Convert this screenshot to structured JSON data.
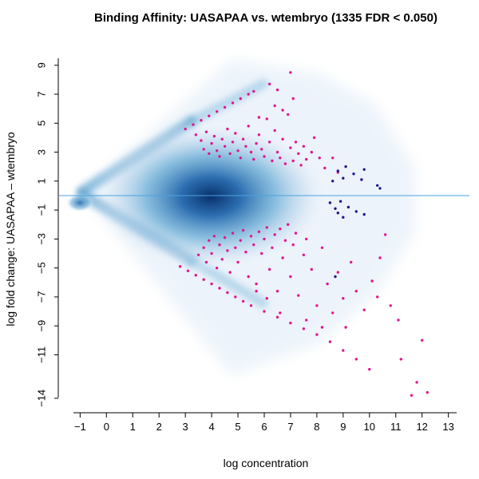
{
  "chart_data": {
    "type": "scatter",
    "title": "Binding Affinity: UASAPAA vs. wtembryo (1335 FDR < 0.050)",
    "xlabel": "log concentration",
    "ylabel": "log fold change: UASAPAA – wtembryo",
    "xlim": [
      -1.8,
      13.8
    ],
    "ylim": [
      -15.0,
      10.2
    ],
    "x_ticks": [
      -1,
      0,
      1,
      2,
      3,
      4,
      5,
      6,
      7,
      8,
      9,
      10,
      11,
      12,
      13
    ],
    "y_ticks": [
      9,
      7,
      5,
      3,
      1,
      -1,
      -3,
      -5,
      -7,
      -9,
      -11,
      -14
    ],
    "x_tick_labels": [
      "−1",
      "0",
      "1",
      "2",
      "3",
      "4",
      "5",
      "6",
      "7",
      "8",
      "9",
      "10",
      "11",
      "12",
      "13"
    ],
    "y_tick_labels": [
      "9",
      "7",
      "5",
      "3",
      "1",
      "−1",
      "−3",
      "−5",
      "−7",
      "−9",
      "−11",
      "−14"
    ],
    "reference_line_y": 0,
    "grid": false,
    "legend": "none",
    "colors": {
      "significant": "#e0178f",
      "low_ratio": "#1a1a8c",
      "density": "#2166ac",
      "reference_line": "#4aa3e0"
    },
    "series": [
      {
        "points": [
          [
            3.0,
            4.6
          ],
          [
            3.3,
            4.9
          ],
          [
            3.6,
            5.2
          ],
          [
            3.9,
            5.5
          ],
          [
            4.2,
            5.8
          ],
          [
            4.5,
            6.1
          ],
          [
            4.8,
            6.4
          ],
          [
            5.1,
            6.7
          ],
          [
            5.4,
            7.0
          ],
          [
            5.6,
            7.2
          ],
          [
            3.4,
            4.2
          ],
          [
            3.6,
            3.8
          ],
          [
            3.7,
            3.2
          ],
          [
            3.8,
            4.4
          ],
          [
            3.9,
            2.9
          ],
          [
            4.0,
            3.6
          ],
          [
            4.1,
            4.1
          ],
          [
            4.2,
            3.1
          ],
          [
            4.3,
            2.7
          ],
          [
            4.4,
            3.9
          ],
          [
            4.5,
            3.4
          ],
          [
            4.6,
            4.6
          ],
          [
            4.7,
            2.9
          ],
          [
            4.8,
            3.7
          ],
          [
            4.9,
            4.3
          ],
          [
            5.0,
            3.1
          ],
          [
            5.1,
            2.6
          ],
          [
            5.2,
            3.9
          ],
          [
            5.3,
            3.4
          ],
          [
            5.4,
            4.8
          ],
          [
            5.5,
            3.0
          ],
          [
            5.6,
            2.5
          ],
          [
            5.7,
            3.6
          ],
          [
            5.8,
            4.2
          ],
          [
            5.9,
            3.2
          ],
          [
            6.0,
            2.7
          ],
          [
            6.1,
            5.3
          ],
          [
            6.2,
            3.7
          ],
          [
            6.3,
            2.4
          ],
          [
            6.4,
            4.5
          ],
          [
            6.5,
            3.0
          ],
          [
            6.6,
            2.6
          ],
          [
            6.7,
            3.9
          ],
          [
            6.8,
            2.2
          ],
          [
            6.9,
            5.6
          ],
          [
            7.0,
            3.3
          ],
          [
            7.1,
            2.4
          ],
          [
            7.2,
            3.7
          ],
          [
            7.3,
            2.9
          ],
          [
            7.4,
            2.1
          ],
          [
            7.5,
            3.4
          ],
          [
            7.6,
            2.5
          ],
          [
            7.8,
            3.0
          ],
          [
            7.9,
            4.0
          ],
          [
            8.1,
            2.6
          ],
          [
            8.3,
            1.9
          ],
          [
            8.6,
            2.6
          ],
          [
            8.8,
            1.6
          ],
          [
            6.2,
            7.7
          ],
          [
            6.5,
            7.3
          ],
          [
            6.7,
            5.9
          ],
          [
            7.0,
            8.5
          ],
          [
            7.1,
            6.7
          ],
          [
            6.4,
            6.2
          ],
          [
            5.8,
            5.4
          ],
          [
            3.5,
            -4.1
          ],
          [
            3.7,
            -3.6
          ],
          [
            3.8,
            -4.6
          ],
          [
            3.9,
            -3.1
          ],
          [
            4.0,
            -4.0
          ],
          [
            4.1,
            -2.8
          ],
          [
            4.2,
            -5.0
          ],
          [
            4.3,
            -3.4
          ],
          [
            4.4,
            -4.4
          ],
          [
            4.5,
            -2.9
          ],
          [
            4.6,
            -3.8
          ],
          [
            4.7,
            -5.3
          ],
          [
            4.8,
            -2.6
          ],
          [
            4.9,
            -3.6
          ],
          [
            5.0,
            -4.6
          ],
          [
            5.1,
            -3.1
          ],
          [
            5.2,
            -2.4
          ],
          [
            5.3,
            -3.9
          ],
          [
            5.4,
            -5.6
          ],
          [
            5.5,
            -2.8
          ],
          [
            5.6,
            -3.4
          ],
          [
            5.7,
            -6.1
          ],
          [
            5.8,
            -2.5
          ],
          [
            5.9,
            -4.0
          ],
          [
            6.0,
            -3.0
          ],
          [
            6.1,
            -2.2
          ],
          [
            6.2,
            -5.1
          ],
          [
            6.3,
            -3.6
          ],
          [
            6.4,
            -2.7
          ],
          [
            6.5,
            -6.6
          ],
          [
            6.6,
            -2.3
          ],
          [
            6.7,
            -4.3
          ],
          [
            6.8,
            -3.1
          ],
          [
            6.9,
            -2.0
          ],
          [
            7.0,
            -5.6
          ],
          [
            7.1,
            -3.4
          ],
          [
            7.2,
            -2.6
          ],
          [
            7.3,
            -6.9
          ],
          [
            7.5,
            -4.1
          ],
          [
            7.6,
            -3.0
          ],
          [
            7.8,
            -5.1
          ],
          [
            8.0,
            -7.6
          ],
          [
            8.2,
            -3.6
          ],
          [
            8.4,
            -6.1
          ],
          [
            8.6,
            -8.1
          ],
          [
            8.8,
            -5.3
          ],
          [
            9.0,
            -7.1
          ],
          [
            9.3,
            -4.6
          ],
          [
            9.5,
            -6.6
          ],
          [
            9.8,
            -7.9
          ],
          [
            10.1,
            -5.9
          ],
          [
            10.4,
            -4.3
          ],
          [
            10.6,
            -2.7
          ],
          [
            9.1,
            -9.1
          ],
          [
            8.2,
            -9.1
          ],
          [
            7.6,
            -8.6
          ],
          [
            6.6,
            -8.1
          ],
          [
            6.1,
            -7.1
          ],
          [
            5.7,
            -6.6
          ],
          [
            2.8,
            -4.9
          ],
          [
            3.1,
            -5.2
          ],
          [
            3.4,
            -5.5
          ],
          [
            3.7,
            -5.8
          ],
          [
            4.0,
            -6.1
          ],
          [
            4.3,
            -6.4
          ],
          [
            4.6,
            -6.7
          ],
          [
            4.9,
            -7.0
          ],
          [
            5.2,
            -7.3
          ],
          [
            5.5,
            -7.6
          ],
          [
            6.0,
            -8.0
          ],
          [
            6.5,
            -8.4
          ],
          [
            7.0,
            -8.8
          ],
          [
            7.5,
            -9.2
          ],
          [
            8.0,
            -9.6
          ],
          [
            8.5,
            -10.1
          ],
          [
            9.0,
            -10.7
          ],
          [
            9.5,
            -11.3
          ],
          [
            10.0,
            -12.0
          ],
          [
            10.3,
            -7.0
          ],
          [
            10.8,
            -7.6
          ],
          [
            11.1,
            -8.6
          ],
          [
            11.2,
            -11.3
          ],
          [
            11.6,
            -13.8
          ],
          [
            11.8,
            -12.9
          ],
          [
            12.0,
            -10.0
          ],
          [
            12.2,
            -13.6
          ]
        ]
      },
      {
        "points": [
          [
            8.6,
            1.0
          ],
          [
            8.8,
            1.7
          ],
          [
            9.0,
            1.2
          ],
          [
            9.1,
            2.0
          ],
          [
            9.4,
            1.5
          ],
          [
            9.7,
            1.1
          ],
          [
            9.8,
            1.8
          ],
          [
            10.3,
            0.7
          ],
          [
            10.4,
            0.5
          ],
          [
            8.5,
            -0.5
          ],
          [
            8.7,
            -0.9
          ],
          [
            8.8,
            -1.2
          ],
          [
            8.9,
            -0.4
          ],
          [
            9.0,
            -1.5
          ],
          [
            9.2,
            -0.8
          ],
          [
            9.5,
            -1.1
          ],
          [
            9.8,
            -1.3
          ],
          [
            8.7,
            -5.6
          ]
        ]
      }
    ]
  }
}
